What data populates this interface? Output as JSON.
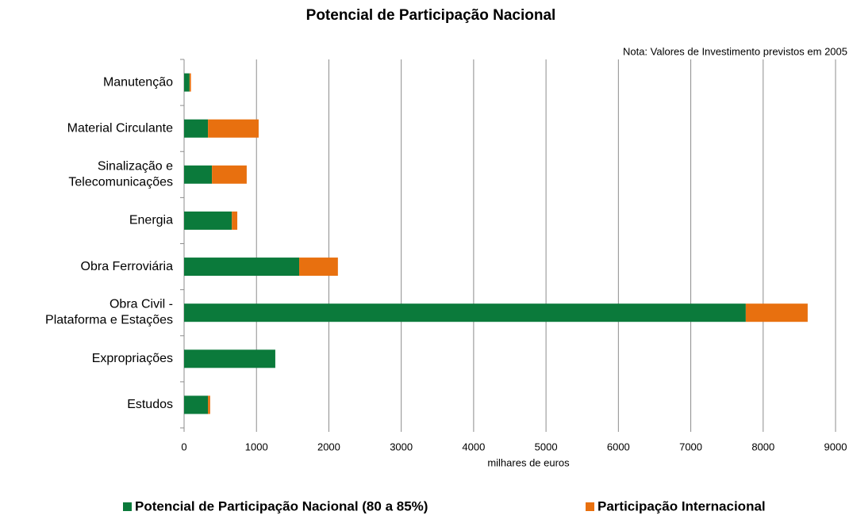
{
  "chart_data": {
    "type": "stacked_bar_horizontal",
    "title": "Potencial de Participação Nacional",
    "annotation": "Nota: Valores de Investimento previstos em 2005",
    "xlabel": "milhares de euros",
    "categories": [
      "Manutenção",
      "Material Circulante",
      "Sinalização e\nTelecomunicações",
      "Energia",
      "Obra Ferroviária",
      "Obra Civil -\nPlataforma e Estações",
      "Expropriações",
      "Estudos"
    ],
    "series": [
      {
        "name": "Potencial de Participação Nacional (80 a 85%)",
        "color": "#0b7a3b",
        "values": [
          75,
          330,
          385,
          660,
          1590,
          7760,
          1260,
          330
        ]
      },
      {
        "name": "Participação Internacional",
        "color": "#e8700f",
        "values": [
          20,
          700,
          480,
          75,
          535,
          855,
          0,
          30
        ]
      }
    ],
    "xlim": [
      0,
      9000
    ],
    "xticks": [
      0,
      1000,
      2000,
      3000,
      4000,
      5000,
      6000,
      7000,
      8000,
      9000
    ],
    "grid": true,
    "legend": "bottom"
  }
}
